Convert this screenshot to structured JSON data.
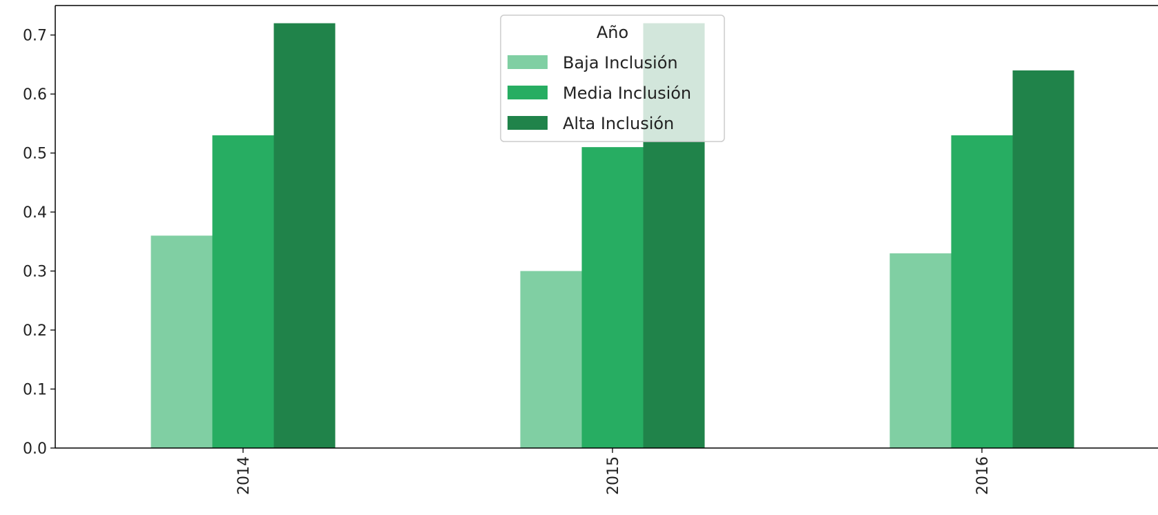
{
  "chart_data": {
    "type": "bar",
    "categories": [
      "2014",
      "2015",
      "2016"
    ],
    "series": [
      {
        "name": "Baja Inclusión",
        "color": "#80cfa3",
        "values": [
          0.36,
          0.3,
          0.33
        ]
      },
      {
        "name": "Media Inclusión",
        "color": "#27ad62",
        "values": [
          0.53,
          0.51,
          0.53
        ]
      },
      {
        "name": "Alta Inclusión",
        "color": "#20834a",
        "values": [
          0.72,
          0.72,
          0.64
        ]
      }
    ],
    "legend": {
      "title": "Año",
      "placement": "top-center"
    },
    "ylim": [
      0,
      0.75
    ],
    "yticks": [
      "0.0",
      "0.1",
      "0.2",
      "0.3",
      "0.4",
      "0.5",
      "0.6",
      "0.7"
    ],
    "xtick_rotation": "vertical",
    "grid": false
  }
}
